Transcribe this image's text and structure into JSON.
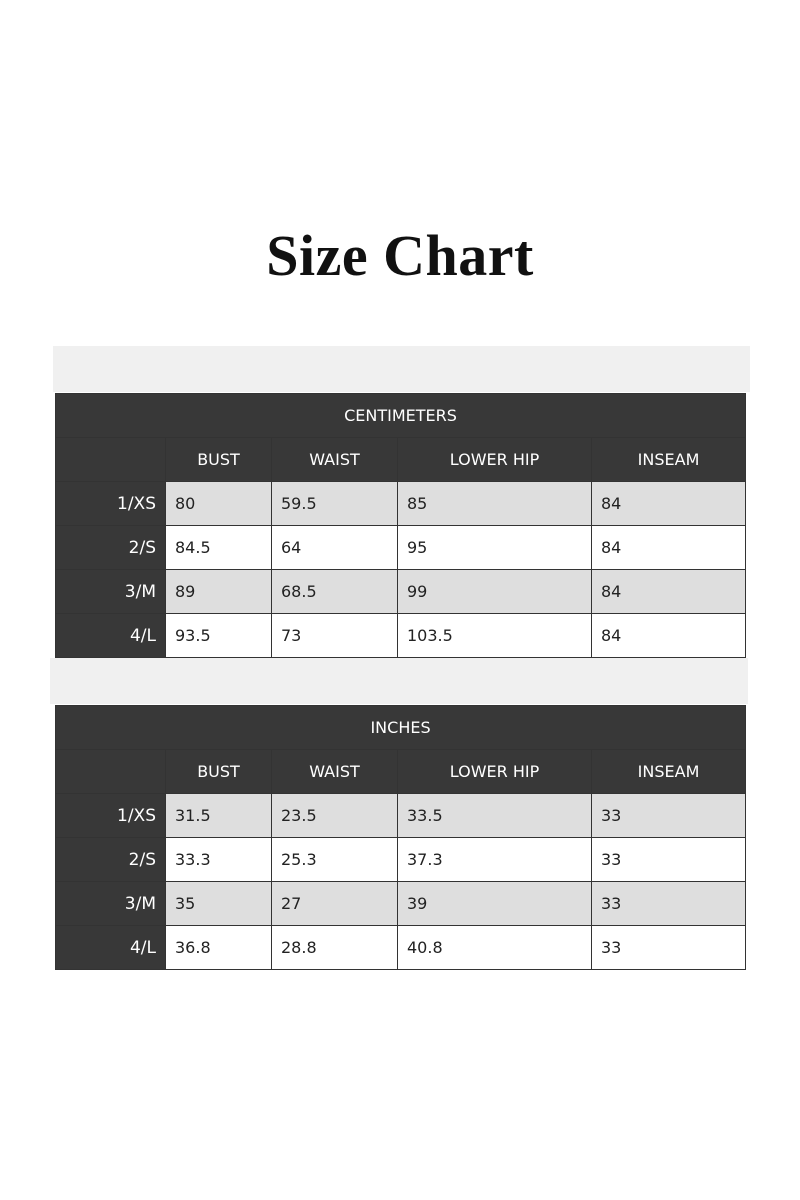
{
  "title": "Size Chart",
  "columns": [
    "BUST",
    "WAIST",
    "LOWER HIP",
    "INSEAM"
  ],
  "tables": [
    {
      "unit": "CENTIMETERS",
      "rows": [
        {
          "size": "1/XS",
          "values": [
            "80",
            "59.5",
            "85",
            "84"
          ]
        },
        {
          "size": "2/S",
          "values": [
            "84.5",
            "64",
            "95",
            "84"
          ]
        },
        {
          "size": "3/M",
          "values": [
            "89",
            "68.5",
            "99",
            "84"
          ]
        },
        {
          "size": "4/L",
          "values": [
            "93.5",
            "73",
            "103.5",
            "84"
          ]
        }
      ]
    },
    {
      "unit": "INCHES",
      "rows": [
        {
          "size": "1/XS",
          "values": [
            "31.5",
            "23.5",
            "33.5",
            "33"
          ]
        },
        {
          "size": "2/S",
          "values": [
            "33.3",
            "25.3",
            "37.3",
            "33"
          ]
        },
        {
          "size": "3/M",
          "values": [
            "35",
            "27",
            "39",
            "33"
          ]
        },
        {
          "size": "4/L",
          "values": [
            "36.8",
            "28.8",
            "40.8",
            "33"
          ]
        }
      ]
    }
  ]
}
